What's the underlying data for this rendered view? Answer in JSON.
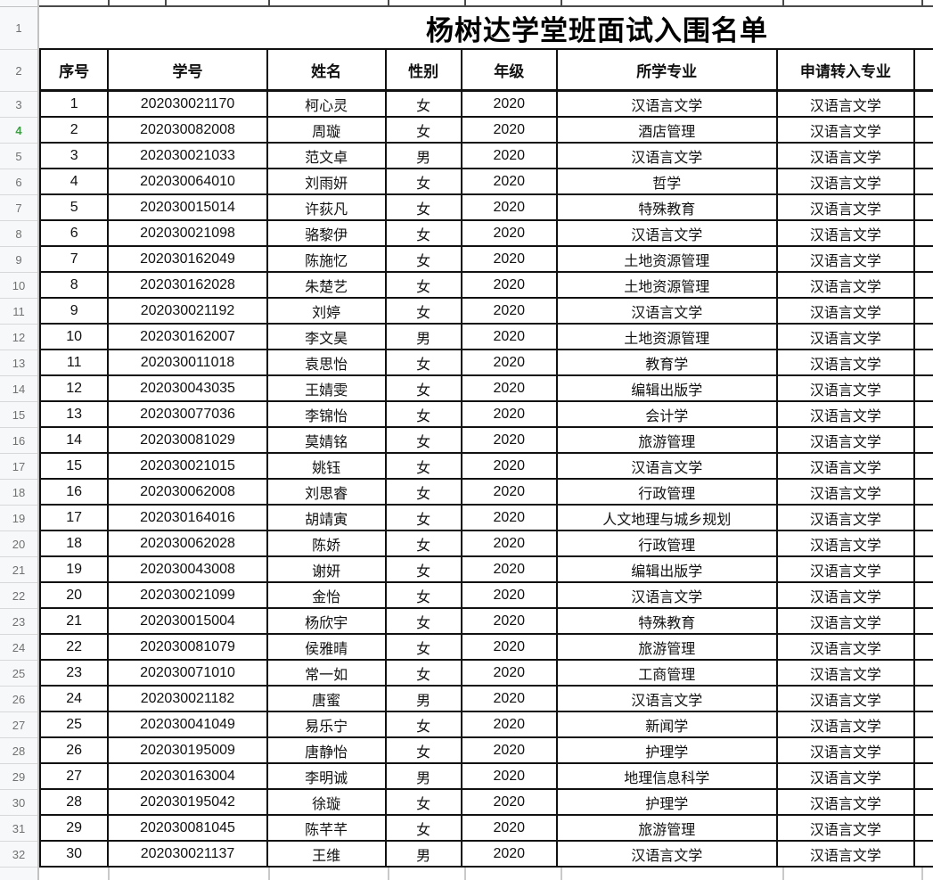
{
  "sheet": {
    "title": "杨树达学堂班面试入围名单",
    "columns": [
      "序号",
      "学号",
      "姓名",
      "性别",
      "年级",
      "所学专业",
      "申请转入专业"
    ],
    "rows": [
      [
        "1",
        "202030021170",
        "柯心灵",
        "女",
        "2020",
        "汉语言文学",
        "汉语言文学"
      ],
      [
        "2",
        "202030082008",
        "周璇",
        "女",
        "2020",
        "酒店管理",
        "汉语言文学"
      ],
      [
        "3",
        "202030021033",
        "范文卓",
        "男",
        "2020",
        "汉语言文学",
        "汉语言文学"
      ],
      [
        "4",
        "202030064010",
        "刘雨妍",
        "女",
        "2020",
        "哲学",
        "汉语言文学"
      ],
      [
        "5",
        "202030015014",
        "许荻凡",
        "女",
        "2020",
        "特殊教育",
        "汉语言文学"
      ],
      [
        "6",
        "202030021098",
        "骆黎伊",
        "女",
        "2020",
        "汉语言文学",
        "汉语言文学"
      ],
      [
        "7",
        "202030162049",
        "陈施忆",
        "女",
        "2020",
        "土地资源管理",
        "汉语言文学"
      ],
      [
        "8",
        "202030162028",
        "朱楚艺",
        "女",
        "2020",
        "土地资源管理",
        "汉语言文学"
      ],
      [
        "9",
        "202030021192",
        "刘婷",
        "女",
        "2020",
        "汉语言文学",
        "汉语言文学"
      ],
      [
        "10",
        "202030162007",
        "李文昊",
        "男",
        "2020",
        "土地资源管理",
        "汉语言文学"
      ],
      [
        "11",
        "202030011018",
        "袁思怡",
        "女",
        "2020",
        "教育学",
        "汉语言文学"
      ],
      [
        "12",
        "202030043035",
        "王婧雯",
        "女",
        "2020",
        "编辑出版学",
        "汉语言文学"
      ],
      [
        "13",
        "202030077036",
        "李锦怡",
        "女",
        "2020",
        "会计学",
        "汉语言文学"
      ],
      [
        "14",
        "202030081029",
        "莫婧铭",
        "女",
        "2020",
        "旅游管理",
        "汉语言文学"
      ],
      [
        "15",
        "202030021015",
        "姚钰",
        "女",
        "2020",
        "汉语言文学",
        "汉语言文学"
      ],
      [
        "16",
        "202030062008",
        "刘思睿",
        "女",
        "2020",
        "行政管理",
        "汉语言文学"
      ],
      [
        "17",
        "202030164016",
        "胡靖寅",
        "女",
        "2020",
        "人文地理与城乡规划",
        "汉语言文学"
      ],
      [
        "18",
        "202030062028",
        "陈娇",
        "女",
        "2020",
        "行政管理",
        "汉语言文学"
      ],
      [
        "19",
        "202030043008",
        "谢妍",
        "女",
        "2020",
        "编辑出版学",
        "汉语言文学"
      ],
      [
        "20",
        "202030021099",
        "金怡",
        "女",
        "2020",
        "汉语言文学",
        "汉语言文学"
      ],
      [
        "21",
        "202030015004",
        "杨欣宇",
        "女",
        "2020",
        "特殊教育",
        "汉语言文学"
      ],
      [
        "22",
        "202030081079",
        "侯雅晴",
        "女",
        "2020",
        "旅游管理",
        "汉语言文学"
      ],
      [
        "23",
        "202030071010",
        "常一如",
        "女",
        "2020",
        "工商管理",
        "汉语言文学"
      ],
      [
        "24",
        "202030021182",
        "唐蜜",
        "男",
        "2020",
        "汉语言文学",
        "汉语言文学"
      ],
      [
        "25",
        "202030041049",
        "易乐宁",
        "女",
        "2020",
        "新闻学",
        "汉语言文学"
      ],
      [
        "26",
        "202030195009",
        "唐静怡",
        "女",
        "2020",
        "护理学",
        "汉语言文学"
      ],
      [
        "27",
        "202030163004",
        "李明诚",
        "男",
        "2020",
        "地理信息科学",
        "汉语言文学"
      ],
      [
        "28",
        "202030195042",
        "徐璇",
        "女",
        "2020",
        "护理学",
        "汉语言文学"
      ],
      [
        "29",
        "202030081045",
        "陈芊芊",
        "女",
        "2020",
        "旅游管理",
        "汉语言文学"
      ],
      [
        "30",
        "202030021137",
        "王维",
        "男",
        "2020",
        "汉语言文学",
        "汉语言文学"
      ]
    ],
    "row_numbers": [
      "1",
      "2",
      "3",
      "4",
      "5",
      "6",
      "7",
      "8",
      "9",
      "10",
      "11",
      "12",
      "13",
      "14",
      "15",
      "16",
      "17",
      "18",
      "19",
      "20",
      "21",
      "22",
      "23",
      "24",
      "25",
      "26",
      "27",
      "28",
      "29",
      "30",
      "31",
      "32"
    ],
    "highlighted_row_number": "4",
    "colors": {
      "cell_border": "#111111",
      "row_header_bg": "#f7f8f9",
      "row_header_text": "#717171",
      "highlight_green": "#3f9e46",
      "faint_gridline": "#c9c9c9"
    }
  }
}
